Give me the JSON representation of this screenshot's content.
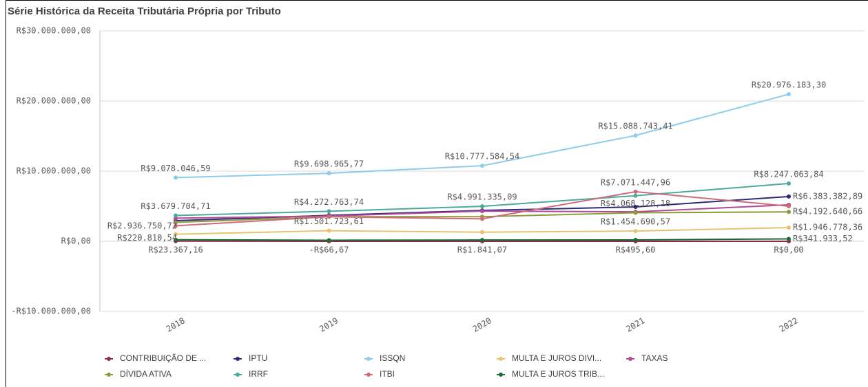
{
  "chart_data": {
    "type": "line",
    "title": "Série Histórica da Receita Tributária Própria por Tributo",
    "categories": [
      "2018",
      "2019",
      "2020",
      "2021",
      "2022"
    ],
    "ylim": [
      -10000000,
      30000000
    ],
    "yticks": [
      {
        "value": -10000000,
        "label": "-R$10.000.000,00"
      },
      {
        "value": 0,
        "label": "R$0,00"
      },
      {
        "value": 10000000,
        "label": "R$10.000.000,00"
      },
      {
        "value": 20000000,
        "label": "R$20.000.000,00"
      },
      {
        "value": 30000000,
        "label": "R$30.000.000,00"
      }
    ],
    "grid": true,
    "series": [
      {
        "name": "CONTRIBUIÇÃO DE ...",
        "color": "#8b2c4a",
        "values": [
          23367.16,
          -66.67,
          1841.07,
          495.6,
          0
        ],
        "value_labels": [
          "R$23.367,16",
          "-R$66,67",
          "R$1.841,07",
          "R$495,60",
          "R$0,00"
        ]
      },
      {
        "name": "IPTU",
        "color": "#2e2a7a",
        "values": [
          2936750.72,
          3700000,
          4400000,
          4900000,
          6383382.89
        ],
        "value_labels": [
          "R$2.936.750,72",
          null,
          null,
          null,
          "R$6.383.382,89"
        ]
      },
      {
        "name": "ISSQN",
        "color": "#8dcdea",
        "values": [
          9078046.59,
          9698965.77,
          10777584.54,
          15088743.41,
          20976183.3
        ],
        "value_labels": [
          "R$9.078.046,59",
          "R$9.698.965,77",
          "R$10.777.584,54",
          "R$15.088.743,41",
          "R$20.976.183,30"
        ]
      },
      {
        "name": "MULTA E JUROS DIVI...",
        "color": "#e6c36f",
        "values": [
          1000000,
          1501723.61,
          1300000,
          1454690.57,
          1946778.36
        ],
        "value_labels": [
          null,
          "R$1.501.723,61",
          null,
          "R$1.454.690,57",
          "R$1.946.778,36"
        ]
      },
      {
        "name": "TAXAS",
        "color": "#b04a94",
        "values": [
          3300000,
          3600000,
          4300000,
          4200000,
          5200000
        ]
      },
      {
        "name": "DÍVIDA ATIVA",
        "color": "#8f9a3a",
        "values": [
          2700000,
          3500000,
          3500000,
          4068128.18,
          4192640.66
        ],
        "value_labels": [
          null,
          null,
          null,
          "R$4.068.128,18",
          "R$4.192.640,66"
        ]
      },
      {
        "name": "IRRF",
        "color": "#4aab9c",
        "values": [
          3679704.71,
          4272763.74,
          4991335.09,
          6500000,
          8247063.84
        ],
        "value_labels": [
          "R$3.679.704,71",
          "R$4.272.763,74",
          "R$4.991.335,09",
          null,
          "R$8.247.063,84"
        ]
      },
      {
        "name": "ITBI",
        "color": "#cd6b7a",
        "values": [
          2200000,
          3500000,
          3200000,
          7071447.96,
          5000000
        ],
        "value_labels": [
          null,
          null,
          null,
          "R$7.071.447,96",
          null
        ]
      },
      {
        "name": "MULTA E JUROS TRIB...",
        "color": "#1f6b35",
        "values": [
          220810.54,
          150000,
          180000,
          200000,
          341933.52
        ],
        "value_labels": [
          "R$220.810,54",
          null,
          null,
          null,
          "R$341.933,52"
        ]
      }
    ]
  }
}
